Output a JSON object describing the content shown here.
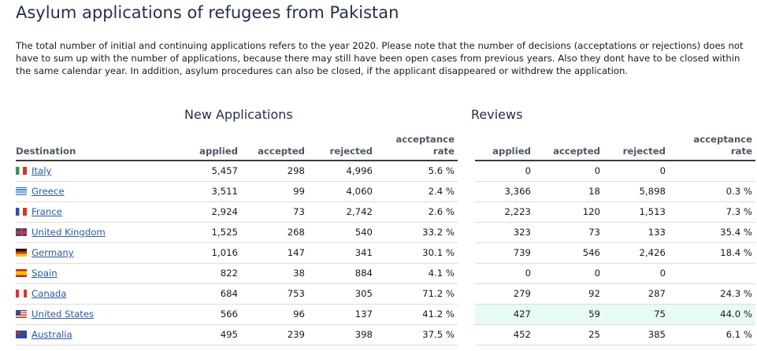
{
  "page": {
    "title": "Asylum applications of refugees from Pakistan",
    "intro": "The total number of initial and continuing applications refers to the year 2020. Please note that the number of decisions (acceptations or rejections) does not have to sum up with the number of applications, because there may still have been open cases from previous years. Also they dont have to be closed within the same calendar year. In addition, asylum procedures can also be closed, if the applicant disappeared or withdrew the application."
  },
  "groups": {
    "new_applications": "New Applications",
    "reviews": "Reviews"
  },
  "columns": {
    "destination": "Destination",
    "applied": "applied",
    "accepted": "accepted",
    "rejected": "rejected",
    "acceptance_rate": "acceptance rate"
  },
  "rows": [
    {
      "country": "Italy",
      "flag": "italy-flag-icon",
      "new": {
        "applied": "5,457",
        "accepted": "298",
        "rejected": "4,996",
        "rate": "5.6 %"
      },
      "rev": {
        "applied": "0",
        "accepted": "0",
        "rejected": "0",
        "rate": ""
      }
    },
    {
      "country": "Greece",
      "flag": "greece-flag-icon",
      "new": {
        "applied": "3,511",
        "accepted": "99",
        "rejected": "4,060",
        "rate": "2.4 %"
      },
      "rev": {
        "applied": "3,366",
        "accepted": "18",
        "rejected": "5,898",
        "rate": "0.3 %"
      }
    },
    {
      "country": "France",
      "flag": "france-flag-icon",
      "new": {
        "applied": "2,924",
        "accepted": "73",
        "rejected": "2,742",
        "rate": "2.6 %"
      },
      "rev": {
        "applied": "2,223",
        "accepted": "120",
        "rejected": "1,513",
        "rate": "7.3 %"
      }
    },
    {
      "country": "United Kingdom",
      "flag": "united-kingdom-flag-icon",
      "new": {
        "applied": "1,525",
        "accepted": "268",
        "rejected": "540",
        "rate": "33.2 %"
      },
      "rev": {
        "applied": "323",
        "accepted": "73",
        "rejected": "133",
        "rate": "35.4 %"
      }
    },
    {
      "country": "Germany",
      "flag": "germany-flag-icon",
      "new": {
        "applied": "1,016",
        "accepted": "147",
        "rejected": "341",
        "rate": "30.1 %"
      },
      "rev": {
        "applied": "739",
        "accepted": "546",
        "rejected": "2,426",
        "rate": "18.4 %"
      }
    },
    {
      "country": "Spain",
      "flag": "spain-flag-icon",
      "new": {
        "applied": "822",
        "accepted": "38",
        "rejected": "884",
        "rate": "4.1 %"
      },
      "rev": {
        "applied": "0",
        "accepted": "0",
        "rejected": "0",
        "rate": ""
      }
    },
    {
      "country": "Canada",
      "flag": "canada-flag-icon",
      "new": {
        "applied": "684",
        "accepted": "753",
        "rejected": "305",
        "rate": "71.2 %"
      },
      "rev": {
        "applied": "279",
        "accepted": "92",
        "rejected": "287",
        "rate": "24.3 %"
      }
    },
    {
      "country": "United States",
      "flag": "united-states-flag-icon",
      "new": {
        "applied": "566",
        "accepted": "96",
        "rejected": "137",
        "rate": "41.2 %"
      },
      "rev": {
        "applied": "427",
        "accepted": "59",
        "rejected": "75",
        "rate": "44.0 %"
      }
    },
    {
      "country": "Australia",
      "flag": "australia-flag-icon",
      "new": {
        "applied": "495",
        "accepted": "239",
        "rejected": "398",
        "rate": "37.5 %"
      },
      "rev": {
        "applied": "452",
        "accepted": "25",
        "rejected": "385",
        "rate": "6.1 %"
      }
    }
  ],
  "colors": {
    "title": "#26304a",
    "link": "#2c5aa0",
    "header_text": "#505762",
    "highlight_row": "#e8faf5"
  }
}
